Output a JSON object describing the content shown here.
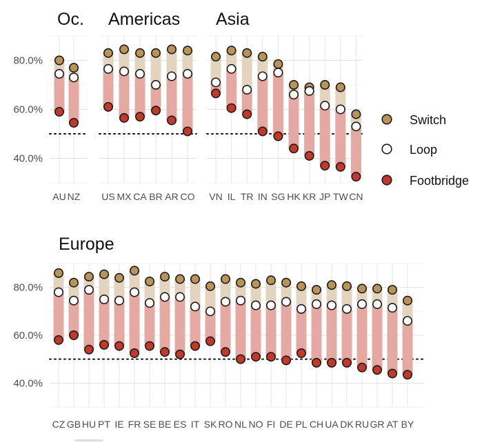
{
  "chart_data": {
    "type": "dot-range",
    "ylim": [
      0.3,
      0.9
    ],
    "yticks": [
      0.4,
      0.6,
      0.8
    ],
    "ytick_labels": [
      "40.0%",
      "60.0%",
      "80.0%"
    ],
    "reference_line": 0.5,
    "grid": true,
    "colors": {
      "Switch": "#b8935a",
      "Loop": "#ffffff",
      "Footbridge": "#c0392b",
      "upper_band": "#e3d4bf",
      "lower_band": "#e5a9a3",
      "outline": "#1a1a1a"
    },
    "legend": {
      "position": "right",
      "entries": [
        "Switch",
        "Loop",
        "Footbridge"
      ]
    },
    "panels": [
      {
        "title": "Oc.",
        "categories": [
          "AU",
          "NZ"
        ],
        "series": [
          {
            "name": "Switch",
            "values": [
              0.8,
              0.77
            ]
          },
          {
            "name": "Loop",
            "values": [
              0.745,
              0.73
            ]
          },
          {
            "name": "Footbridge",
            "values": [
              0.59,
              0.545
            ]
          }
        ]
      },
      {
        "title": "Americas",
        "categories": [
          "US",
          "MX",
          "CA",
          "BR",
          "AR",
          "CO"
        ],
        "series": [
          {
            "name": "Switch",
            "values": [
              0.83,
              0.845,
              0.83,
              0.83,
              0.845,
              0.84
            ]
          },
          {
            "name": "Loop",
            "values": [
              0.765,
              0.755,
              0.745,
              0.7,
              0.735,
              0.745
            ]
          },
          {
            "name": "Footbridge",
            "values": [
              0.61,
              0.565,
              0.57,
              0.595,
              0.555,
              0.51
            ]
          }
        ]
      },
      {
        "title": "Asia",
        "categories": [
          "VN",
          "IL",
          "TR",
          "IN",
          "SG",
          "HK",
          "KR",
          "JP",
          "TW",
          "CN"
        ],
        "series": [
          {
            "name": "Switch",
            "values": [
              0.815,
              0.84,
              0.83,
              0.815,
              0.785,
              0.7,
              0.69,
              0.7,
              0.69,
              0.58
            ]
          },
          {
            "name": "Loop",
            "values": [
              0.71,
              0.765,
              0.68,
              0.735,
              0.75,
              0.66,
              0.675,
              0.615,
              0.6,
              0.53
            ]
          },
          {
            "name": "Footbridge",
            "values": [
              0.665,
              0.605,
              0.58,
              0.51,
              0.49,
              0.44,
              0.41,
              0.37,
              0.365,
              0.325
            ]
          }
        ]
      },
      {
        "title": "Europe",
        "categories": [
          "CZ",
          "GB",
          "HU",
          "PT",
          "IE",
          "FR",
          "SE",
          "BE",
          "ES",
          "IT",
          "SK",
          "RO",
          "NL",
          "NO",
          "FI",
          "DE",
          "PL",
          "CH",
          "UA",
          "DK",
          "RU",
          "GR",
          "AT",
          "BY"
        ],
        "series": [
          {
            "name": "Switch",
            "values": [
              0.86,
              0.82,
              0.845,
              0.855,
              0.84,
              0.87,
              0.825,
              0.845,
              0.835,
              0.835,
              0.805,
              0.835,
              0.82,
              0.815,
              0.83,
              0.82,
              0.805,
              0.79,
              0.81,
              0.805,
              0.795,
              0.795,
              0.79,
              0.745
            ]
          },
          {
            "name": "Loop",
            "values": [
              0.78,
              0.745,
              0.79,
              0.75,
              0.745,
              0.78,
              0.735,
              0.76,
              0.76,
              0.72,
              0.7,
              0.74,
              0.745,
              0.725,
              0.725,
              0.74,
              0.71,
              0.73,
              0.725,
              0.71,
              0.73,
              0.73,
              0.715,
              0.66
            ]
          },
          {
            "name": "Footbridge",
            "values": [
              0.58,
              0.6,
              0.54,
              0.56,
              0.555,
              0.525,
              0.555,
              0.53,
              0.52,
              0.555,
              0.575,
              0.53,
              0.5,
              0.51,
              0.51,
              0.495,
              0.525,
              0.485,
              0.485,
              0.485,
              0.465,
              0.455,
              0.44,
              0.435
            ]
          }
        ]
      }
    ]
  }
}
